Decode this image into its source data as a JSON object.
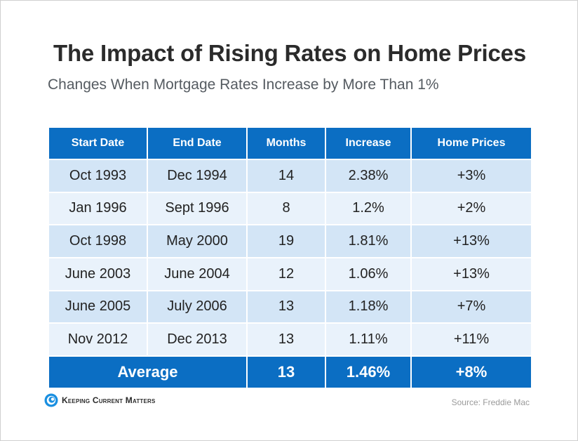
{
  "chart_data": {
    "type": "table",
    "title": "The Impact of Rising Rates on Home Prices",
    "subtitle": "Changes When Mortgage Rates Increase by More Than 1%",
    "columns": [
      "Start Date",
      "End Date",
      "Months",
      "Increase",
      "Home Prices"
    ],
    "rows": [
      [
        "Oct 1993",
        "Dec 1994",
        "14",
        "2.38%",
        "+3%"
      ],
      [
        "Jan 1996",
        "Sept 1996",
        "8",
        "1.2%",
        "+2%"
      ],
      [
        "Oct 1998",
        "May 2000",
        "19",
        "1.81%",
        "+13%"
      ],
      [
        "June 2003",
        "June 2004",
        "12",
        "1.06%",
        "+13%"
      ],
      [
        "June 2005",
        "July 2006",
        "13",
        "1.18%",
        "+7%"
      ],
      [
        "Nov 2012",
        "Dec 2013",
        "13",
        "1.11%",
        "+11%"
      ]
    ],
    "average": {
      "label": "Average",
      "months": "13",
      "increase": "1.46%",
      "home_prices": "+8%"
    }
  },
  "footer": {
    "logo_text": "Keeping Current Matters",
    "source": "Source: Freddie Mac"
  },
  "colors": {
    "header_blue": "#0b6ec3",
    "row_dark": "#d3e5f6",
    "row_light": "#e9f2fb"
  }
}
